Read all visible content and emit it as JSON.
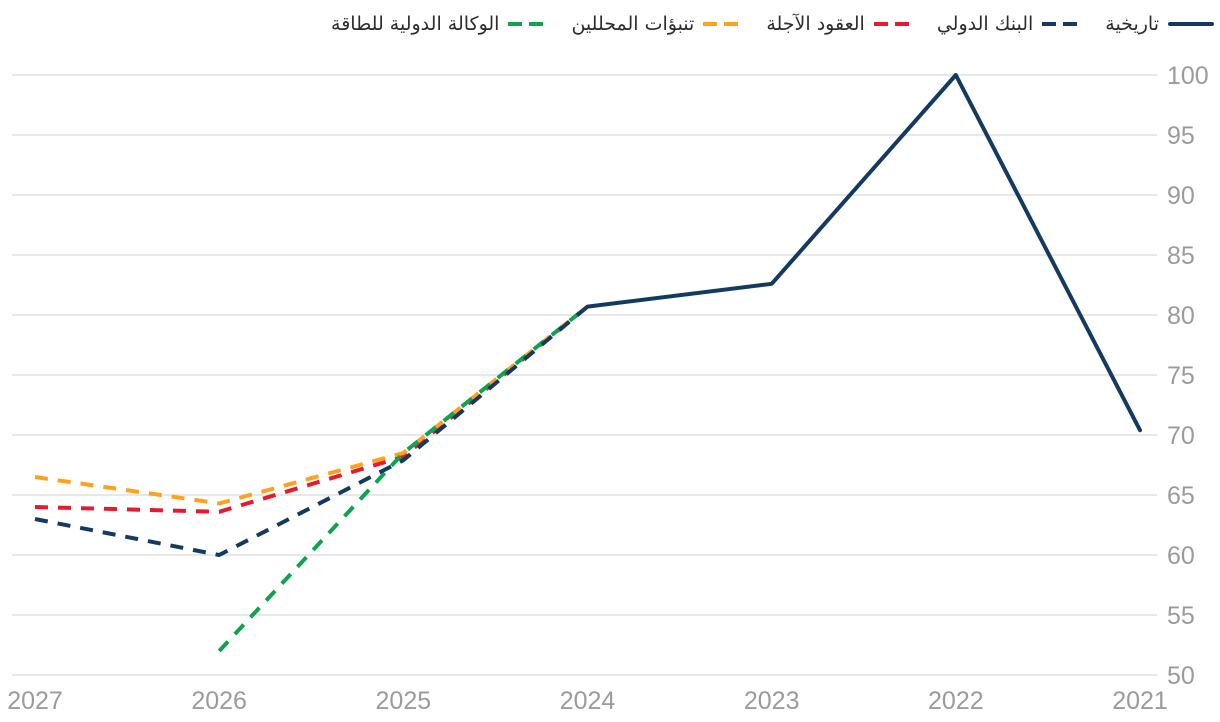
{
  "legend": {
    "items": [
      {
        "label": "تاريخية",
        "style": "solid",
        "color": "#133a61"
      },
      {
        "label": "البنك الدولي",
        "style": "dashed",
        "color": "#133a61"
      },
      {
        "label": "العقود الآجلة",
        "style": "dashed",
        "color": "#e8182d"
      },
      {
        "label": "تنبؤات المحللين",
        "style": "dashed",
        "color": "#ffa11c"
      },
      {
        "label": "الوكالة الدولية للطاقة",
        "style": "dashed",
        "color": "#0ea34c"
      }
    ]
  },
  "chart_data": {
    "type": "line",
    "title": "",
    "xlabel": "",
    "ylabel": "",
    "x_categories": [
      "2027",
      "2026",
      "2025",
      "2024",
      "2023",
      "2022",
      "2021"
    ],
    "x_axis_note": "time increases right-to-left (RTL chart)",
    "ylim": [
      50,
      100
    ],
    "y_ticks": [
      100,
      95,
      90,
      85,
      80,
      75,
      70,
      65,
      60,
      55,
      50
    ],
    "grid": "horizontal-only",
    "legend_position": "top-right",
    "y_axis_side": "right",
    "series": [
      {
        "name": "تاريخية",
        "style": "solid",
        "color": "#133a61",
        "points": [
          [
            "2024",
            80.7
          ],
          [
            "2023",
            82.6
          ],
          [
            "2022",
            100
          ],
          [
            "2021",
            70.4
          ]
        ]
      },
      {
        "name": "البنك الدولي",
        "style": "dashed",
        "color": "#133a61",
        "points": [
          [
            "2027",
            63.0
          ],
          [
            "2026",
            60.0
          ],
          [
            "2025",
            67.9
          ],
          [
            "2024",
            80.7
          ]
        ]
      },
      {
        "name": "العقود الآجلة",
        "style": "dashed",
        "color": "#e8182d",
        "points": [
          [
            "2027",
            64.0
          ],
          [
            "2026",
            63.6
          ],
          [
            "2025",
            68.2
          ],
          [
            "2024",
            80.7
          ]
        ]
      },
      {
        "name": "تنبؤات المحللين",
        "style": "dashed",
        "color": "#ffa11c",
        "points": [
          [
            "2027",
            66.5
          ],
          [
            "2026",
            64.3
          ],
          [
            "2025",
            68.5
          ],
          [
            "2024",
            80.7
          ]
        ]
      },
      {
        "name": "الوكالة الدولية للطاقة",
        "style": "dashed",
        "color": "#0ea34c",
        "points": [
          [
            "2026",
            52.0
          ],
          [
            "2025",
            68.5
          ],
          [
            "2024",
            80.7
          ]
        ]
      }
    ],
    "colors": {
      "gridline": "#e8e8e8",
      "axis_label": "#9b9b9b",
      "legend_text": "#2d2d2d"
    }
  }
}
